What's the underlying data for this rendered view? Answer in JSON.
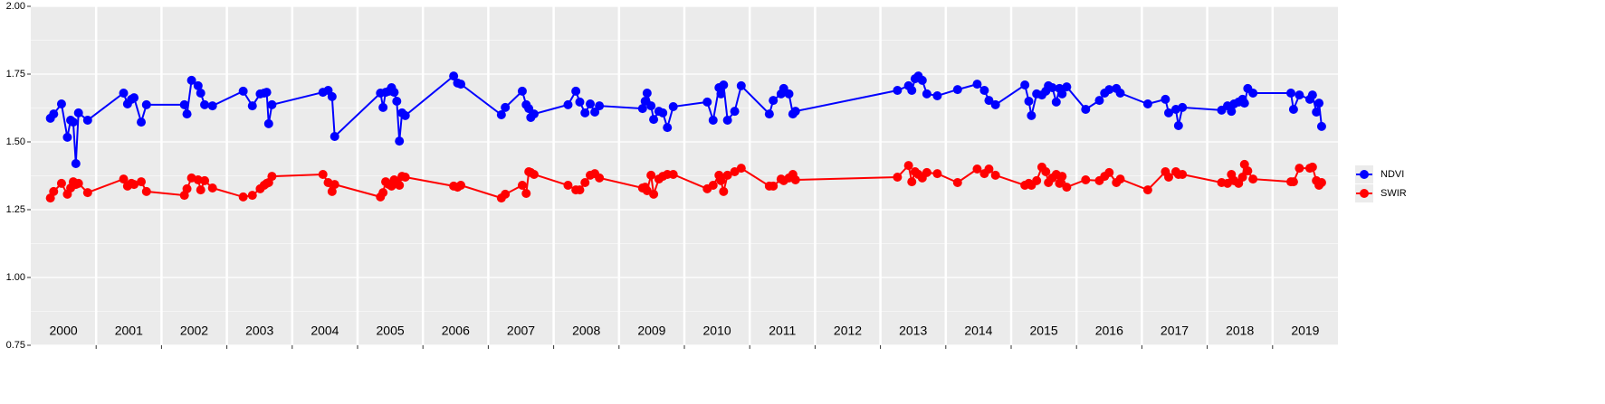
{
  "chart_data": {
    "type": "line",
    "x": [
      2000.3,
      2000.35,
      2000.47,
      2000.56,
      2000.61,
      2000.65,
      2000.69,
      2000.73,
      2000.87,
      2001.42,
      2001.48,
      2001.54,
      2001.58,
      2001.69,
      2001.77,
      2002.35,
      2002.39,
      2002.46,
      2002.56,
      2002.6,
      2002.66,
      2002.78,
      2003.25,
      2003.39,
      2003.51,
      2003.57,
      2003.61,
      2003.64,
      2003.69,
      2004.47,
      2004.55,
      2004.61,
      2004.65,
      2005.35,
      2005.39,
      2005.43,
      2005.48,
      2005.52,
      2005.56,
      2005.6,
      2005.64,
      2005.68,
      2005.73,
      2006.47,
      2006.53,
      2006.58,
      2007.2,
      2007.26,
      2007.52,
      2007.58,
      2007.62,
      2007.65,
      2007.7,
      2008.22,
      2008.34,
      2008.4,
      2008.48,
      2008.56,
      2008.63,
      2008.7,
      2009.36,
      2009.4,
      2009.43,
      2009.49,
      2009.53,
      2009.61,
      2009.67,
      2009.74,
      2009.83,
      2010.35,
      2010.44,
      2010.53,
      2010.56,
      2010.6,
      2010.66,
      2010.77,
      2010.87,
      2011.3,
      2011.36,
      2011.48,
      2011.52,
      2011.6,
      2011.66,
      2011.7,
      2013.26,
      2013.43,
      2013.48,
      2013.53,
      2013.58,
      2013.64,
      2013.71,
      2013.87,
      2014.18,
      2014.48,
      2014.59,
      2014.66,
      2014.76,
      2015.21,
      2015.27,
      2015.31,
      2015.39,
      2015.47,
      2015.53,
      2015.57,
      2015.63,
      2015.69,
      2015.74,
      2015.78,
      2015.85,
      2016.14,
      2016.35,
      2016.43,
      2016.5,
      2016.61,
      2016.67,
      2017.09,
      2017.36,
      2017.41,
      2017.52,
      2017.56,
      2017.62,
      2018.22,
      2018.31,
      2018.37,
      2018.41,
      2018.48,
      2018.54,
      2018.57,
      2018.62,
      2018.7,
      2019.28,
      2019.32,
      2019.41,
      2019.57,
      2019.61,
      2019.67,
      2019.71,
      2019.75
    ],
    "series": [
      {
        "name": "NDVI",
        "color": "#0000ff",
        "values": [
          1.587,
          1.603,
          1.64,
          1.517,
          1.58,
          1.573,
          1.42,
          1.607,
          1.58,
          1.68,
          1.64,
          1.657,
          1.663,
          1.573,
          1.637,
          1.637,
          1.603,
          1.727,
          1.707,
          1.68,
          1.637,
          1.633,
          1.687,
          1.633,
          1.677,
          1.68,
          1.683,
          1.567,
          1.637,
          1.683,
          1.69,
          1.667,
          1.52,
          1.68,
          1.627,
          1.683,
          1.687,
          1.7,
          1.683,
          1.65,
          1.503,
          1.607,
          1.597,
          1.743,
          1.717,
          1.713,
          1.6,
          1.627,
          1.687,
          1.637,
          1.623,
          1.59,
          1.603,
          1.637,
          1.687,
          1.647,
          1.607,
          1.64,
          1.61,
          1.633,
          1.623,
          1.65,
          1.68,
          1.633,
          1.583,
          1.613,
          1.607,
          1.553,
          1.63,
          1.647,
          1.58,
          1.7,
          1.677,
          1.71,
          1.58,
          1.613,
          1.707,
          1.603,
          1.653,
          1.677,
          1.697,
          1.677,
          1.603,
          1.613,
          1.69,
          1.707,
          1.69,
          1.733,
          1.743,
          1.727,
          1.677,
          1.67,
          1.693,
          1.713,
          1.69,
          1.653,
          1.637,
          1.71,
          1.65,
          1.597,
          1.677,
          1.673,
          1.687,
          1.707,
          1.7,
          1.647,
          1.697,
          1.677,
          1.703,
          1.62,
          1.653,
          1.68,
          1.693,
          1.697,
          1.68,
          1.64,
          1.657,
          1.607,
          1.62,
          1.56,
          1.627,
          1.617,
          1.633,
          1.613,
          1.64,
          1.647,
          1.657,
          1.643,
          1.697,
          1.68,
          1.68,
          1.62,
          1.673,
          1.657,
          1.673,
          1.61,
          1.643,
          1.557
        ]
      },
      {
        "name": "SWIR",
        "color": "#ff0000",
        "values": [
          1.293,
          1.317,
          1.347,
          1.307,
          1.33,
          1.353,
          1.343,
          1.347,
          1.313,
          1.363,
          1.337,
          1.347,
          1.343,
          1.353,
          1.317,
          1.303,
          1.327,
          1.367,
          1.36,
          1.323,
          1.357,
          1.33,
          1.297,
          1.303,
          1.327,
          1.34,
          1.347,
          1.35,
          1.373,
          1.38,
          1.35,
          1.317,
          1.343,
          1.297,
          1.313,
          1.353,
          1.343,
          1.337,
          1.36,
          1.353,
          1.34,
          1.373,
          1.37,
          1.337,
          1.333,
          1.34,
          1.293,
          1.307,
          1.34,
          1.31,
          1.39,
          1.387,
          1.38,
          1.34,
          1.323,
          1.323,
          1.35,
          1.377,
          1.383,
          1.367,
          1.33,
          1.333,
          1.32,
          1.377,
          1.307,
          1.363,
          1.373,
          1.38,
          1.38,
          1.327,
          1.34,
          1.377,
          1.357,
          1.317,
          1.377,
          1.39,
          1.403,
          1.337,
          1.337,
          1.363,
          1.357,
          1.367,
          1.38,
          1.36,
          1.37,
          1.413,
          1.353,
          1.39,
          1.38,
          1.367,
          1.387,
          1.383,
          1.35,
          1.4,
          1.383,
          1.4,
          1.377,
          1.34,
          1.347,
          1.34,
          1.357,
          1.407,
          1.39,
          1.35,
          1.367,
          1.38,
          1.347,
          1.373,
          1.333,
          1.36,
          1.357,
          1.373,
          1.387,
          1.35,
          1.363,
          1.323,
          1.39,
          1.37,
          1.39,
          1.38,
          1.38,
          1.35,
          1.347,
          1.38,
          1.357,
          1.347,
          1.37,
          1.417,
          1.393,
          1.363,
          1.353,
          1.353,
          1.403,
          1.403,
          1.407,
          1.357,
          1.34,
          1.35
        ]
      }
    ],
    "xlim": [
      2000,
      2020
    ],
    "xticks": [
      2001,
      2002,
      2003,
      2004,
      2005,
      2006,
      2007,
      2008,
      2009,
      2010,
      2011,
      2012,
      2013,
      2014,
      2015,
      2016,
      2017,
      2018,
      2019
    ],
    "years": [
      2000,
      2001,
      2002,
      2003,
      2004,
      2005,
      2006,
      2007,
      2008,
      2009,
      2010,
      2011,
      2012,
      2013,
      2014,
      2015,
      2016,
      2017,
      2018,
      2019
    ],
    "ylim": [
      0.75,
      2
    ],
    "yticks": [
      0.75,
      {
        "value": 1,
        "label": "1.00"
      },
      {
        "value": 1.25,
        "label": "1.25"
      },
      {
        "value": 1.5,
        "label": "1.50"
      },
      1.75,
      {
        "value": 2,
        "label": "2.00"
      }
    ],
    "grid": true,
    "legend": "right"
  }
}
